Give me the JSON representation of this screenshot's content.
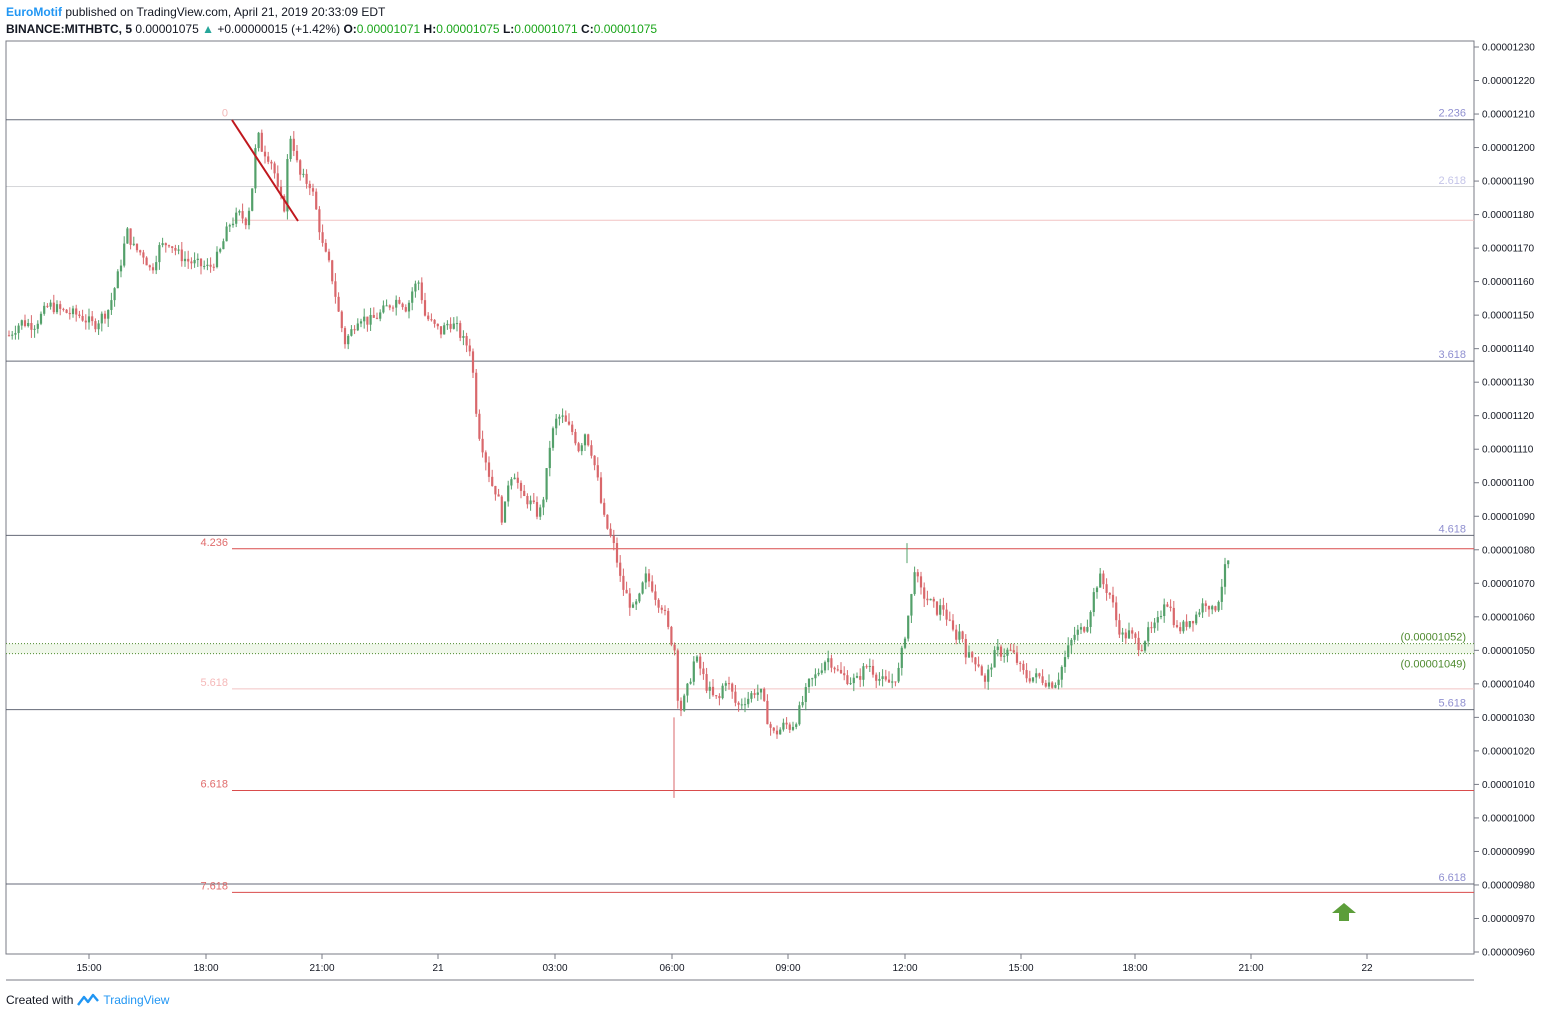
{
  "header": {
    "author": "EuroMotif",
    "published": "published on TradingView.com, April 21, 2019 20:33:09 EDT",
    "symbol": "BINANCE:MITHBTC, 5",
    "last": "0.00001075",
    "change": "+0.00000015 (+1.42%)",
    "o_label": "O:",
    "o": "0.00001071",
    "h_label": "H:",
    "h": "0.00001075",
    "l_label": "L:",
    "l": "0.00001071",
    "c_label": "C:",
    "c": "0.00001075"
  },
  "footer": {
    "created": "Created with",
    "brand": "TradingView"
  },
  "colors": {
    "up": "#53a06a",
    "down": "#d9676b",
    "fibA": "#8f8fd0",
    "fibB": "#e06c6c",
    "hline": "#4e8a2e",
    "arrow": "#5c9e3a"
  },
  "chart_data": {
    "type": "candlestick",
    "ylim": [
      9.6e-06,
      1.23e-05
    ],
    "y_ticks": [
      "0.00000960",
      "0.00000970",
      "0.00000980",
      "0.00000990",
      "0.00001000",
      "0.00001010",
      "0.00001020",
      "0.00001030",
      "0.00001040",
      "0.00001050",
      "0.00001060",
      "0.00001070",
      "0.00001080",
      "0.00001090",
      "0.00001100",
      "0.00001110",
      "0.00001120",
      "0.00001130",
      "0.00001140",
      "0.00001150",
      "0.00001160",
      "0.00001170",
      "0.00001180",
      "0.00001190",
      "0.00001200",
      "0.00001210",
      "0.00001220",
      "0.00001230"
    ],
    "x_ticks": [
      "15:00",
      "18:00",
      "21:00",
      "21",
      "03:00",
      "06:00",
      "09:00",
      "12:00",
      "15:00",
      "18:00",
      "21:00",
      "22"
    ],
    "price_path": [
      [
        0,
        1.144
      ],
      [
        12,
        1.148
      ],
      [
        25,
        1.147
      ],
      [
        40,
        1.153
      ],
      [
        55,
        1.151
      ],
      [
        70,
        1.15
      ],
      [
        85,
        1.147
      ],
      [
        100,
        1.152
      ],
      [
        110,
        1.163
      ],
      [
        118,
        1.175
      ],
      [
        125,
        1.17
      ],
      [
        135,
        1.168
      ],
      [
        142,
        1.163
      ],
      [
        150,
        1.17
      ],
      [
        160,
        1.172
      ],
      [
        170,
        1.168
      ],
      [
        180,
        1.166
      ],
      [
        190,
        1.165
      ],
      [
        200,
        1.164
      ],
      [
        210,
        1.168
      ],
      [
        220,
        1.177
      ],
      [
        230,
        1.18
      ],
      [
        238,
        1.178
      ],
      [
        244,
        1.19
      ],
      [
        248,
        1.205
      ],
      [
        252,
        1.2
      ],
      [
        258,
        1.198
      ],
      [
        264,
        1.195
      ],
      [
        270,
        1.185
      ],
      [
        276,
        1.182
      ],
      [
        280,
        1.205
      ],
      [
        285,
        1.2
      ],
      [
        290,
        1.192
      ],
      [
        296,
        1.19
      ],
      [
        302,
        1.189
      ],
      [
        308,
        1.18
      ],
      [
        314,
        1.17
      ],
      [
        320,
        1.165
      ],
      [
        324,
        1.16
      ],
      [
        330,
        1.15
      ],
      [
        336,
        1.142
      ],
      [
        342,
        1.145
      ],
      [
        350,
        1.15
      ],
      [
        360,
        1.148
      ],
      [
        370,
        1.15
      ],
      [
        380,
        1.153
      ],
      [
        390,
        1.155
      ],
      [
        398,
        1.152
      ],
      [
        404,
        1.158
      ],
      [
        410,
        1.16
      ],
      [
        416,
        1.15
      ],
      [
        424,
        1.147
      ],
      [
        432,
        1.145
      ],
      [
        440,
        1.148
      ],
      [
        448,
        1.146
      ],
      [
        455,
        1.142
      ],
      [
        462,
        1.14
      ],
      [
        466,
        1.125
      ],
      [
        470,
        1.115
      ],
      [
        476,
        1.108
      ],
      [
        482,
        1.1
      ],
      [
        488,
        1.097
      ],
      [
        494,
        1.088
      ],
      [
        500,
        1.102
      ],
      [
        506,
        1.103
      ],
      [
        512,
        1.096
      ],
      [
        518,
        1.095
      ],
      [
        524,
        1.093
      ],
      [
        530,
        1.09
      ],
      [
        536,
        1.098
      ],
      [
        540,
        1.11
      ],
      [
        546,
        1.118
      ],
      [
        552,
        1.12
      ],
      [
        558,
        1.117
      ],
      [
        564,
        1.115
      ],
      [
        570,
        1.11
      ],
      [
        576,
        1.115
      ],
      [
        582,
        1.11
      ],
      [
        588,
        1.102
      ],
      [
        594,
        1.09
      ],
      [
        600,
        1.085
      ],
      [
        606,
        1.08
      ],
      [
        612,
        1.07
      ],
      [
        618,
        1.066
      ],
      [
        624,
        1.062
      ],
      [
        630,
        1.065
      ],
      [
        636,
        1.072
      ],
      [
        642,
        1.07
      ],
      [
        648,
        1.065
      ],
      [
        654,
        1.063
      ],
      [
        660,
        1.055
      ],
      [
        666,
        1.05
      ],
      [
        670,
        1.031
      ],
      [
        674,
        1.034
      ],
      [
        680,
        1.04
      ],
      [
        686,
        1.048
      ],
      [
        692,
        1.044
      ],
      [
        698,
        1.039
      ],
      [
        704,
        1.036
      ],
      [
        710,
        1.035
      ],
      [
        716,
        1.042
      ],
      [
        722,
        1.038
      ],
      [
        728,
        1.033
      ],
      [
        734,
        1.035
      ],
      [
        740,
        1.036
      ],
      [
        746,
        1.038
      ],
      [
        752,
        1.037
      ],
      [
        758,
        1.03
      ],
      [
        764,
        1.025
      ],
      [
        770,
        1.026
      ],
      [
        776,
        1.028
      ],
      [
        782,
        1.027
      ],
      [
        788,
        1.03
      ],
      [
        794,
        1.035
      ],
      [
        800,
        1.04
      ],
      [
        806,
        1.042
      ],
      [
        812,
        1.045
      ],
      [
        818,
        1.048
      ],
      [
        824,
        1.046
      ],
      [
        830,
        1.043
      ],
      [
        836,
        1.042
      ],
      [
        842,
        1.041
      ],
      [
        848,
        1.041
      ],
      [
        854,
        1.044
      ],
      [
        860,
        1.046
      ],
      [
        866,
        1.043
      ],
      [
        872,
        1.041
      ],
      [
        878,
        1.04
      ],
      [
        884,
        1.041
      ],
      [
        890,
        1.044
      ],
      [
        896,
        1.055
      ],
      [
        902,
        1.065
      ],
      [
        906,
        1.076
      ],
      [
        910,
        1.068
      ],
      [
        916,
        1.066
      ],
      [
        922,
        1.064
      ],
      [
        928,
        1.062
      ],
      [
        934,
        1.063
      ],
      [
        940,
        1.058
      ],
      [
        946,
        1.054
      ],
      [
        952,
        1.056
      ],
      [
        958,
        1.048
      ],
      [
        964,
        1.048
      ],
      [
        970,
        1.046
      ],
      [
        976,
        1.04
      ],
      [
        982,
        1.046
      ],
      [
        988,
        1.05
      ],
      [
        994,
        1.049
      ],
      [
        1000,
        1.05
      ],
      [
        1006,
        1.048
      ],
      [
        1012,
        1.044
      ],
      [
        1018,
        1.042
      ],
      [
        1024,
        1.042
      ],
      [
        1030,
        1.042
      ],
      [
        1036,
        1.041
      ],
      [
        1042,
        1.04
      ],
      [
        1048,
        1.041
      ],
      [
        1054,
        1.046
      ],
      [
        1060,
        1.051
      ],
      [
        1066,
        1.055
      ],
      [
        1072,
        1.056
      ],
      [
        1078,
        1.058
      ],
      [
        1084,
        1.066
      ],
      [
        1090,
        1.072
      ],
      [
        1096,
        1.069
      ],
      [
        1102,
        1.066
      ],
      [
        1108,
        1.058
      ],
      [
        1114,
        1.054
      ],
      [
        1120,
        1.055
      ],
      [
        1126,
        1.053
      ],
      [
        1132,
        1.051
      ],
      [
        1138,
        1.055
      ],
      [
        1144,
        1.056
      ],
      [
        1150,
        1.059
      ],
      [
        1156,
        1.066
      ],
      [
        1162,
        1.062
      ],
      [
        1168,
        1.056
      ],
      [
        1174,
        1.057
      ],
      [
        1180,
        1.059
      ],
      [
        1186,
        1.06
      ],
      [
        1192,
        1.063
      ],
      [
        1198,
        1.065
      ],
      [
        1204,
        1.061
      ],
      [
        1210,
        1.066
      ],
      [
        1216,
        1.074
      ],
      [
        1222,
        1.078
      ],
      [
        1228,
        1.074
      ],
      [
        1232,
        1.074
      ]
    ],
    "fib_right": [
      {
        "label": "2.236",
        "price": 1.2083e-05
      },
      {
        "label": "2.618",
        "price": 1.1883e-05
      },
      {
        "label": "3.618",
        "price": 1.1363e-05
      },
      {
        "label": "4.618",
        "price": 1.0843e-05
      },
      {
        "label": "5.618",
        "price": 1.0323e-05
      },
      {
        "label": "6.618",
        "price": 9.803e-06
      }
    ],
    "fib_left": [
      {
        "label": "0",
        "price": 1.2083e-05
      },
      {
        "label": "",
        "price": 1.1783e-05
      },
      {
        "label": "4.236",
        "price": 1.0803e-05
      },
      {
        "label": "5.618",
        "price": 1.0385e-05
      },
      {
        "label": "6.618",
        "price": 1.0082e-05
      },
      {
        "label": "7.618",
        "price": 9.778e-06
      }
    ],
    "hlines": [
      {
        "label": "(0.00001052)",
        "price": 1.052e-05
      },
      {
        "label": "(0.00001049)",
        "price": 1.049e-05
      }
    ]
  }
}
